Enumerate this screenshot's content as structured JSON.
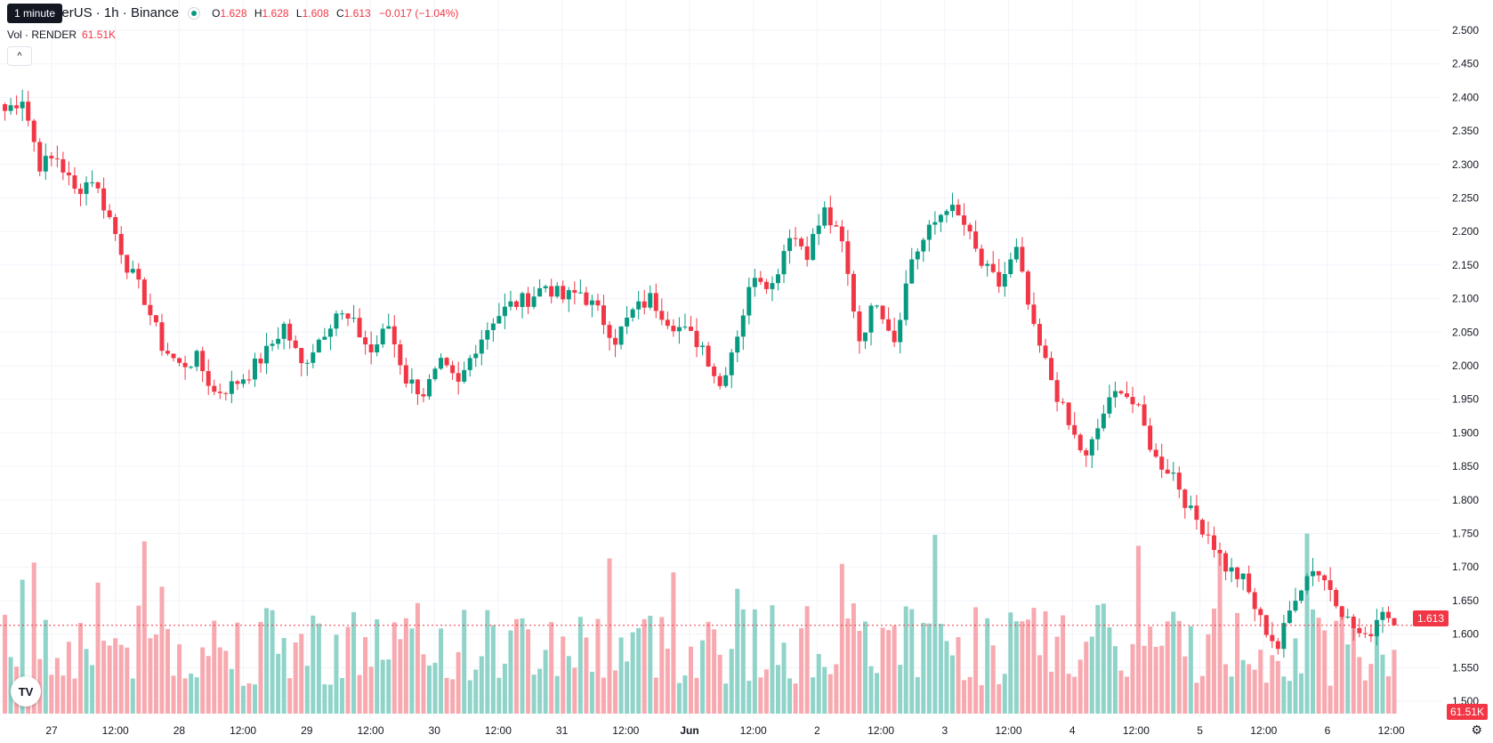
{
  "tooltip": "1 minute",
  "legend": {
    "symbol": "ER / TetherUS · 1h · Binance",
    "o_label": "O",
    "o": "1.628",
    "h_label": "H",
    "h": "1.628",
    "l_label": "L",
    "l": "1.608",
    "c_label": "C",
    "c": "1.613",
    "change": "−0.017 (−1.04%)"
  },
  "volume_legend": {
    "label": "Vol · RENDER",
    "value": "61.51K"
  },
  "collapse_icon": "chevron-up-icon",
  "current_price_label": "1.613",
  "current_volume_label": "61.51K",
  "logo": "TV",
  "settings_icon": "gear-icon",
  "colors": {
    "up": "#089981",
    "down": "#f23645",
    "up_vol": "#8fd3c9",
    "down_vol": "#f7a9af",
    "grid": "#f0f3fa"
  },
  "chart_data": {
    "type": "candlestick",
    "price_axis": {
      "min": 1.5,
      "max": 2.5,
      "step": 0.05,
      "ticks": [
        "2.500",
        "2.450",
        "2.400",
        "2.350",
        "2.300",
        "2.250",
        "2.200",
        "2.150",
        "2.100",
        "2.050",
        "2.000",
        "1.950",
        "1.900",
        "1.850",
        "1.800",
        "1.750",
        "1.700",
        "1.650",
        "1.600",
        "1.550",
        "1.500"
      ]
    },
    "time_axis": {
      "labels": [
        "27",
        "12:00",
        "28",
        "12:00",
        "29",
        "12:00",
        "30",
        "12:00",
        "31",
        "12:00",
        "Jun",
        "12:00",
        "2",
        "12:00",
        "3",
        "12:00",
        "4",
        "12:00",
        "5",
        "12:00",
        "6",
        "12:00"
      ]
    },
    "last_price": 1.613,
    "price_path": [
      [
        0,
        2.38
      ],
      [
        3,
        2.4
      ],
      [
        6,
        2.3
      ],
      [
        9,
        2.31
      ],
      [
        12,
        2.26
      ],
      [
        15,
        2.28
      ],
      [
        18,
        2.22
      ],
      [
        21,
        2.15
      ],
      [
        24,
        2.1
      ],
      [
        27,
        2.03
      ],
      [
        30,
        2.0
      ],
      [
        33,
        2.01
      ],
      [
        36,
        1.96
      ],
      [
        39,
        1.97
      ],
      [
        42,
        1.99
      ],
      [
        45,
        2.02
      ],
      [
        48,
        2.06
      ],
      [
        51,
        2.0
      ],
      [
        54,
        2.04
      ],
      [
        57,
        2.08
      ],
      [
        60,
        2.06
      ],
      [
        63,
        2.02
      ],
      [
        66,
        2.06
      ],
      [
        69,
        1.98
      ],
      [
        72,
        1.96
      ],
      [
        75,
        2.0
      ],
      [
        78,
        1.97
      ],
      [
        81,
        2.03
      ],
      [
        84,
        2.07
      ],
      [
        87,
        2.09
      ],
      [
        90,
        2.1
      ],
      [
        93,
        2.12
      ],
      [
        96,
        2.1
      ],
      [
        99,
        2.11
      ],
      [
        102,
        2.08
      ],
      [
        105,
        2.04
      ],
      [
        108,
        2.08
      ],
      [
        111,
        2.1
      ],
      [
        114,
        2.07
      ],
      [
        117,
        2.05
      ],
      [
        120,
        2.03
      ],
      [
        123,
        1.97
      ],
      [
        126,
        2.05
      ],
      [
        129,
        2.14
      ],
      [
        132,
        2.12
      ],
      [
        135,
        2.2
      ],
      [
        138,
        2.17
      ],
      [
        141,
        2.23
      ],
      [
        144,
        2.18
      ],
      [
        147,
        2.04
      ],
      [
        150,
        2.1
      ],
      [
        153,
        2.04
      ],
      [
        156,
        2.16
      ],
      [
        159,
        2.2
      ],
      [
        162,
        2.24
      ],
      [
        165,
        2.21
      ],
      [
        168,
        2.15
      ],
      [
        171,
        2.12
      ],
      [
        174,
        2.17
      ],
      [
        177,
        2.05
      ],
      [
        180,
        1.98
      ],
      [
        183,
        1.91
      ],
      [
        186,
        1.86
      ],
      [
        189,
        1.93
      ],
      [
        192,
        1.97
      ],
      [
        195,
        1.93
      ],
      [
        198,
        1.86
      ],
      [
        201,
        1.84
      ],
      [
        204,
        1.78
      ],
      [
        207,
        1.75
      ],
      [
        210,
        1.7
      ],
      [
        213,
        1.68
      ],
      [
        216,
        1.62
      ],
      [
        219,
        1.58
      ],
      [
        222,
        1.66
      ],
      [
        225,
        1.7
      ],
      [
        228,
        1.67
      ],
      [
        231,
        1.62
      ],
      [
        234,
        1.59
      ],
      [
        237,
        1.64
      ],
      [
        239,
        1.613
      ]
    ],
    "n_bars": 240,
    "volume_max_ratio": 0.27
  }
}
